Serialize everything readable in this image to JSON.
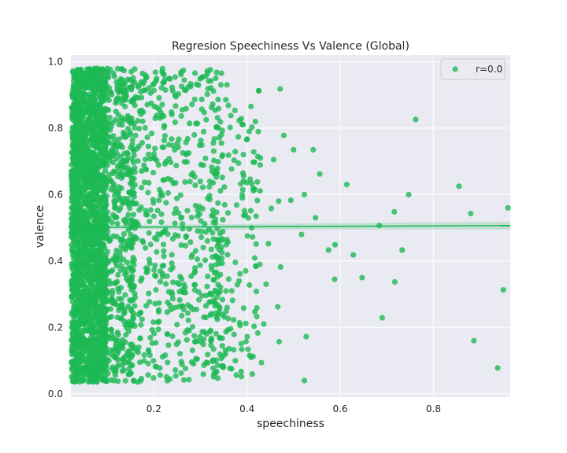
{
  "chart_data": {
    "type": "scatter",
    "title": "Regresion Speechiness Vs Valence (Global)",
    "xlabel": "speechiness",
    "ylabel": "valence",
    "xlim": [
      0.022,
      0.965
    ],
    "ylim": [
      -0.01,
      1.02
    ],
    "xticks": [
      0.2,
      0.4,
      0.6,
      0.8
    ],
    "xtick_labels": [
      "0.2",
      "0.4",
      "0.6",
      "0.8"
    ],
    "yticks": [
      0.0,
      0.2,
      0.4,
      0.6,
      0.8,
      1.0
    ],
    "ytick_labels": [
      "0.0",
      "0.2",
      "0.4",
      "0.6",
      "0.8",
      "1.0"
    ],
    "grid": true,
    "background": "#eaeaf2",
    "point_color": "#1db954",
    "series": [
      {
        "name": "r=0.0",
        "points": [
          [
            0.762,
            0.826
          ],
          [
            0.855,
            0.625
          ],
          [
            0.88,
            0.543
          ],
          [
            0.96,
            0.56
          ],
          [
            0.95,
            0.313
          ],
          [
            0.887,
            0.16
          ],
          [
            0.938,
            0.078
          ],
          [
            0.747,
            0.6
          ],
          [
            0.716,
            0.548
          ],
          [
            0.733,
            0.433
          ],
          [
            0.717,
            0.337
          ],
          [
            0.684,
            0.507
          ],
          [
            0.69,
            0.229
          ],
          [
            0.647,
            0.35
          ],
          [
            0.628,
            0.418
          ],
          [
            0.614,
            0.63
          ],
          [
            0.589,
            0.449
          ],
          [
            0.588,
            0.345
          ],
          [
            0.575,
            0.433
          ],
          [
            0.556,
            0.662
          ],
          [
            0.547,
            0.53
          ],
          [
            0.542,
            0.735
          ],
          [
            0.523,
            0.6
          ],
          [
            0.523,
            0.04
          ],
          [
            0.527,
            0.172
          ],
          [
            0.517,
            0.48
          ],
          [
            0.5,
            0.735
          ],
          [
            0.494,
            0.583
          ],
          [
            0.479,
            0.778
          ],
          [
            0.471,
            0.918
          ],
          [
            0.468,
            0.58
          ],
          [
            0.472,
            0.382
          ],
          [
            0.466,
            0.262
          ],
          [
            0.469,
            0.157
          ],
          [
            0.457,
            0.705
          ],
          [
            0.452,
            0.558
          ],
          [
            0.446,
            0.452
          ],
          [
            0.441,
            0.33
          ],
          [
            0.436,
            0.21
          ],
          [
            0.431,
            0.094
          ],
          [
            0.422,
            0.638
          ],
          [
            0.425,
            0.913
          ],
          [
            0.41,
            0.5
          ],
          [
            0.409,
            0.11
          ],
          [
            0.405,
            0.79
          ],
          [
            0.397,
            0.37
          ],
          [
            0.393,
            0.258
          ],
          [
            0.388,
            0.052
          ]
        ]
      }
    ],
    "regression": {
      "slope": 0.006,
      "intercept": 0.5008,
      "ci_halfwidth": [
        0.006,
        0.012
      ]
    },
    "legend": {
      "label": "r=0.0",
      "position": "top-right"
    }
  }
}
